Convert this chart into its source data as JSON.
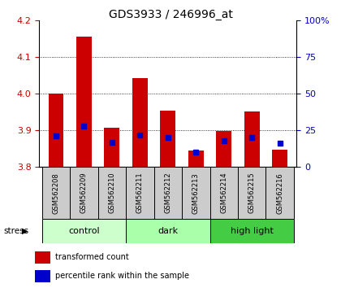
{
  "title": "GDS3933 / 246996_at",
  "samples": [
    "GSM562208",
    "GSM562209",
    "GSM562210",
    "GSM562211",
    "GSM562212",
    "GSM562213",
    "GSM562214",
    "GSM562215",
    "GSM562216"
  ],
  "transformed_counts": [
    4.001,
    4.155,
    3.906,
    4.043,
    3.953,
    3.845,
    3.898,
    3.952,
    3.847
  ],
  "percentile_ranks": [
    21,
    28,
    17,
    22,
    20,
    10,
    18,
    20,
    16
  ],
  "ylim": [
    3.8,
    4.2
  ],
  "yticks": [
    3.8,
    3.9,
    4.0,
    4.1,
    4.2
  ],
  "right_ylim": [
    0,
    100
  ],
  "right_yticks": [
    0,
    25,
    50,
    75,
    100
  ],
  "right_yticklabels": [
    "0",
    "25",
    "50",
    "75",
    "100%"
  ],
  "bar_color": "#cc0000",
  "percentile_color": "#0000cc",
  "groups": [
    {
      "label": "control",
      "indices": [
        0,
        1,
        2
      ],
      "color": "#ccffcc"
    },
    {
      "label": "dark",
      "indices": [
        3,
        4,
        5
      ],
      "color": "#aaffaa"
    },
    {
      "label": "high light",
      "indices": [
        6,
        7,
        8
      ],
      "color": "#44cc44"
    }
  ],
  "stress_label": "stress",
  "bar_color_red": "#cc0000",
  "percentile_color_blue": "#0000cc",
  "label_color_red": "#cc0000",
  "label_color_blue": "#0000cc",
  "bar_width": 0.55,
  "sample_box_color": "#cccccc",
  "title_fontsize": 10,
  "axis_fontsize": 8,
  "sample_fontsize": 6,
  "group_fontsize": 8,
  "legend_fontsize": 7
}
